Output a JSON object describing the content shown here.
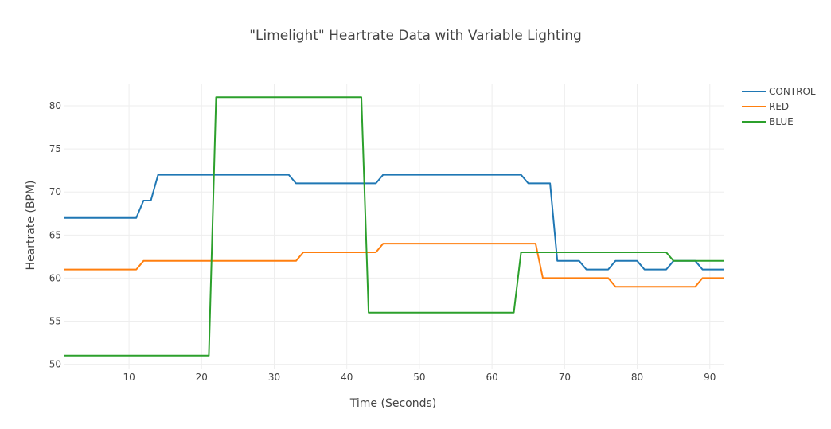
{
  "chart_data": {
    "type": "line",
    "title": "\"Limelight\" Heartrate Data with Variable Lighting",
    "xlabel": "Time (Seconds)",
    "ylabel": "Heartrate (BPM)",
    "xlim": [
      1,
      92
    ],
    "ylim": [
      49.5,
      82.5
    ],
    "xticks": [
      10,
      20,
      30,
      40,
      50,
      60,
      70,
      80,
      90
    ],
    "yticks": [
      50,
      55,
      60,
      65,
      70,
      75,
      80
    ],
    "grid": true,
    "legend_position": "top-right",
    "series": [
      {
        "name": "CONTROL",
        "color": "#1f77b4",
        "points": [
          [
            1,
            67
          ],
          [
            11,
            67
          ],
          [
            12,
            69
          ],
          [
            13,
            69
          ],
          [
            14,
            72
          ],
          [
            32,
            72
          ],
          [
            33,
            71
          ],
          [
            44,
            71
          ],
          [
            45,
            72
          ],
          [
            64,
            72
          ],
          [
            65,
            71
          ],
          [
            68,
            71
          ],
          [
            69,
            62
          ],
          [
            72,
            62
          ],
          [
            73,
            61
          ],
          [
            76,
            61
          ],
          [
            77,
            62
          ],
          [
            80,
            62
          ],
          [
            81,
            61
          ],
          [
            84,
            61
          ],
          [
            85,
            62
          ],
          [
            88,
            62
          ],
          [
            89,
            61
          ],
          [
            92,
            61
          ]
        ]
      },
      {
        "name": "RED",
        "color": "#ff7f0e",
        "points": [
          [
            1,
            61
          ],
          [
            11,
            61
          ],
          [
            12,
            62
          ],
          [
            33,
            62
          ],
          [
            34,
            63
          ],
          [
            44,
            63
          ],
          [
            45,
            64
          ],
          [
            66,
            64
          ],
          [
            67,
            60
          ],
          [
            76,
            60
          ],
          [
            77,
            59
          ],
          [
            88,
            59
          ],
          [
            89,
            60
          ],
          [
            92,
            60
          ]
        ]
      },
      {
        "name": "BLUE",
        "color": "#2ca02c",
        "points": [
          [
            1,
            51
          ],
          [
            21,
            51
          ],
          [
            22,
            81
          ],
          [
            42,
            81
          ],
          [
            43,
            56
          ],
          [
            63,
            56
          ],
          [
            64,
            63
          ],
          [
            84,
            63
          ],
          [
            85,
            62
          ],
          [
            92,
            62
          ]
        ]
      }
    ]
  }
}
